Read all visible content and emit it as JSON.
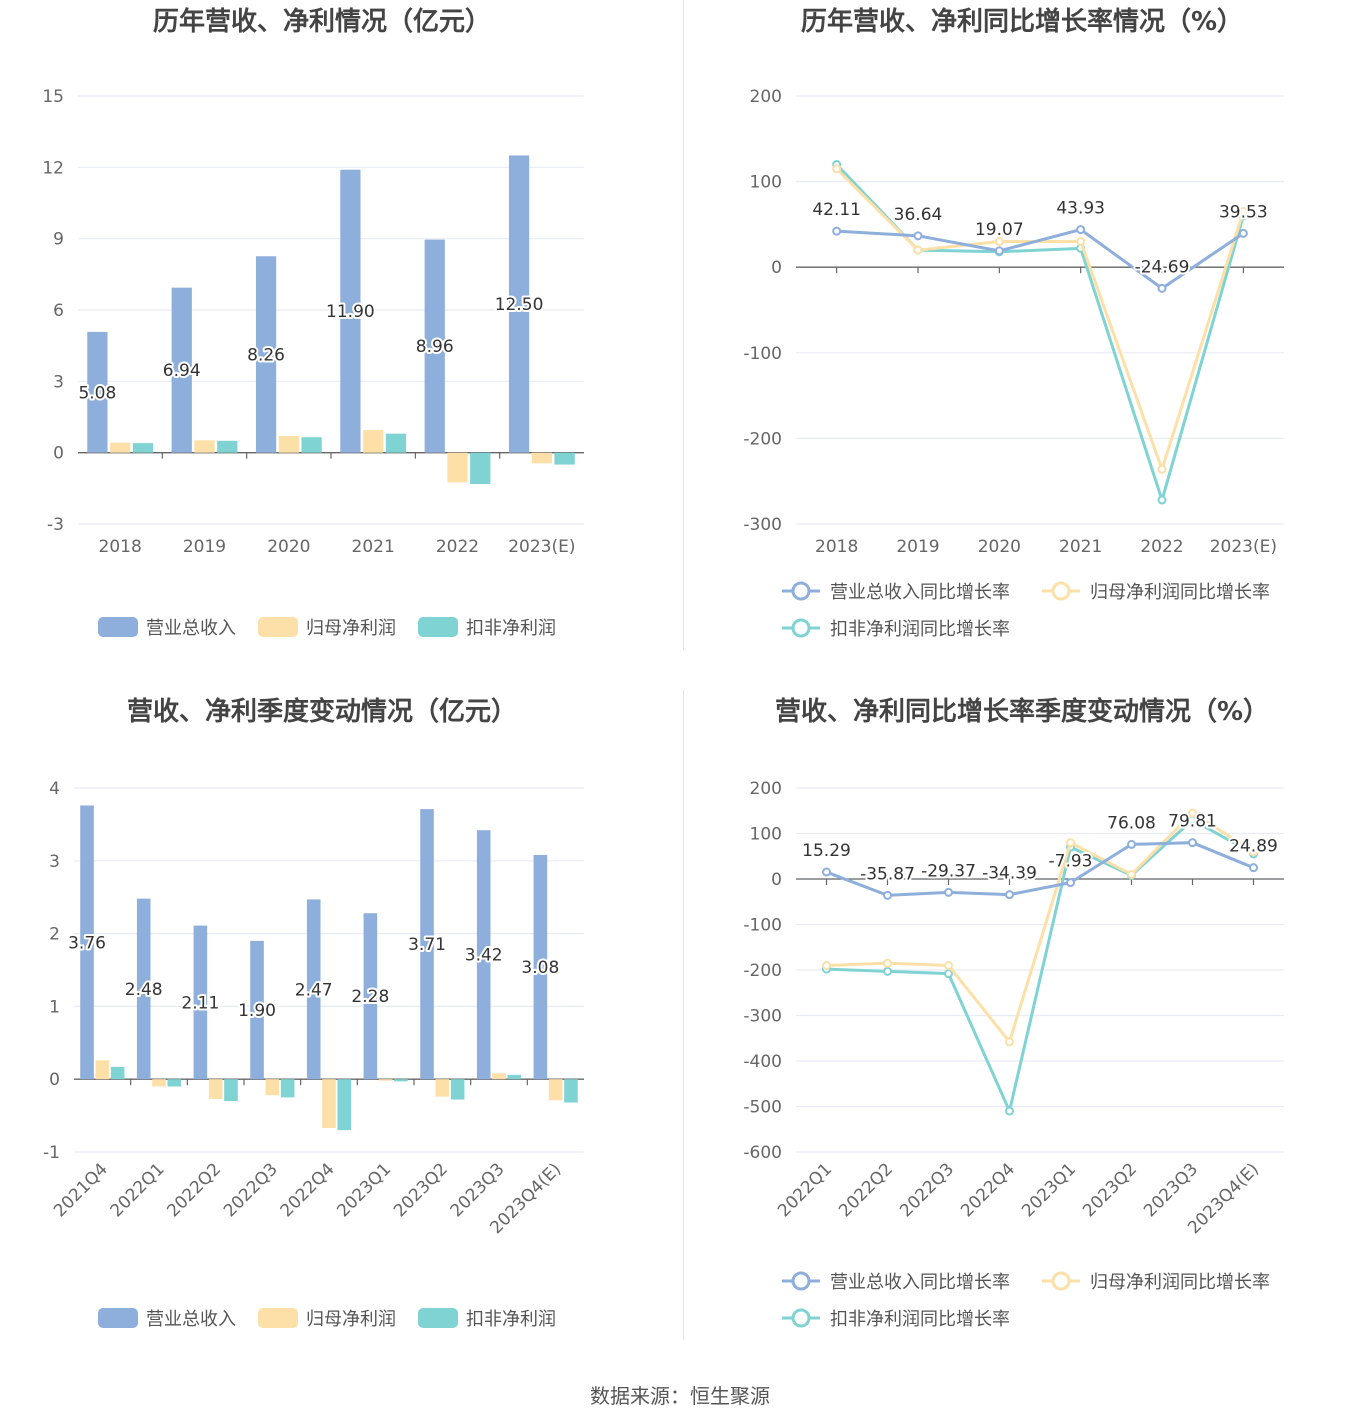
{
  "footer": {
    "source": "数据来源：恒生聚源"
  },
  "chart_data": [
    {
      "id": "annual-bar",
      "type": "bar",
      "title": "历年营收、净利情况（亿元）",
      "categories": [
        "2018",
        "2019",
        "2020",
        "2021",
        "2022",
        "2023(E)"
      ],
      "ylim": [
        -3,
        15
      ],
      "yticks": [
        -3,
        0,
        3,
        6,
        9,
        12,
        15
      ],
      "grid": true,
      "legend_position": "bottom",
      "series": [
        {
          "name": "营业总收入",
          "color": "#8eaedb",
          "values": [
            5.08,
            6.94,
            8.26,
            11.9,
            8.96,
            12.5
          ],
          "labels": [
            "5.08",
            "6.94",
            "8.26",
            "11.90",
            "8.96",
            "12.50"
          ]
        },
        {
          "name": "归母净利润",
          "color": "#fddfa8",
          "values": [
            0.42,
            0.52,
            0.7,
            0.95,
            -1.25,
            -0.45
          ]
        },
        {
          "name": "扣非净利润",
          "color": "#7fd3d3",
          "values": [
            0.4,
            0.5,
            0.65,
            0.8,
            -1.32,
            -0.5
          ]
        }
      ]
    },
    {
      "id": "annual-line",
      "type": "line",
      "title": "历年营收、净利同比增长率情况（%）",
      "categories": [
        "2018",
        "2019",
        "2020",
        "2021",
        "2022",
        "2023(E)"
      ],
      "ylim": [
        -300,
        200
      ],
      "yticks": [
        -300,
        -200,
        -100,
        0,
        100,
        200
      ],
      "grid": true,
      "legend_position": "bottom",
      "series": [
        {
          "name": "营业总收入同比增长率",
          "color": "#8eaedb",
          "values": [
            42.11,
            36.64,
            19.07,
            43.93,
            -24.69,
            39.53
          ],
          "labels": [
            "42.11",
            "36.64",
            "19.07",
            "43.93",
            "-24.69",
            "39.53"
          ]
        },
        {
          "name": "归母净利润同比增长率",
          "color": "#fddfa8",
          "values": [
            115,
            20,
            30,
            30,
            -236,
            65
          ]
        },
        {
          "name": "扣非净利润同比增长率",
          "color": "#7fd3d3",
          "values": [
            120,
            20,
            18,
            22,
            -272,
            60
          ]
        }
      ]
    },
    {
      "id": "quarter-bar",
      "type": "bar",
      "title": "营收、净利季度变动情况（亿元）",
      "categories": [
        "2021Q4",
        "2022Q1",
        "2022Q2",
        "2022Q3",
        "2022Q4",
        "2023Q1",
        "2023Q2",
        "2023Q3",
        "2023Q4(E)"
      ],
      "ylim": [
        -1,
        4
      ],
      "yticks": [
        -1,
        0,
        1,
        2,
        3,
        4
      ],
      "grid": true,
      "legend_position": "bottom",
      "series": [
        {
          "name": "营业总收入",
          "color": "#8eaedb",
          "values": [
            3.76,
            2.48,
            2.11,
            1.9,
            2.47,
            2.28,
            3.71,
            3.42,
            3.08
          ],
          "labels": [
            "3.76",
            "2.48",
            "2.11",
            "1.90",
            "2.47",
            "2.28",
            "3.71",
            "3.42",
            "3.08"
          ]
        },
        {
          "name": "归母净利润",
          "color": "#fddfa8",
          "values": [
            0.26,
            -0.1,
            -0.27,
            -0.22,
            -0.67,
            -0.02,
            -0.24,
            0.08,
            -0.29
          ]
        },
        {
          "name": "扣非净利润",
          "color": "#7fd3d3",
          "values": [
            0.17,
            -0.1,
            -0.3,
            -0.25,
            -0.7,
            -0.03,
            -0.28,
            0.06,
            -0.32
          ]
        }
      ]
    },
    {
      "id": "quarter-line",
      "type": "line",
      "title": "营收、净利同比增长率季度变动情况（%）",
      "categories": [
        "2022Q1",
        "2022Q2",
        "2022Q3",
        "2022Q4",
        "2023Q1",
        "2023Q2",
        "2023Q3",
        "2023Q4(E)"
      ],
      "ylim": [
        -600,
        200
      ],
      "yticks": [
        -600,
        -500,
        -400,
        -300,
        -200,
        -100,
        0,
        100,
        200
      ],
      "grid": true,
      "legend_position": "bottom",
      "series": [
        {
          "name": "营业总收入同比增长率",
          "color": "#8eaedb",
          "values": [
            15.29,
            -35.87,
            -29.37,
            -34.39,
            -7.93,
            76.08,
            79.81,
            24.89
          ],
          "labels": [
            "15.29",
            "-35.87",
            "-29.37",
            "-34.39",
            "-7.93",
            "76.08",
            "79.81",
            "24.89"
          ]
        },
        {
          "name": "归母净利润同比增长率",
          "color": "#fddfa8",
          "values": [
            -190,
            -185,
            -190,
            -358,
            80,
            10,
            145,
            60
          ]
        },
        {
          "name": "扣非净利润同比增长率",
          "color": "#7fd3d3",
          "values": [
            -198,
            -203,
            -208,
            -510,
            70,
            8,
            130,
            55
          ]
        }
      ]
    }
  ]
}
